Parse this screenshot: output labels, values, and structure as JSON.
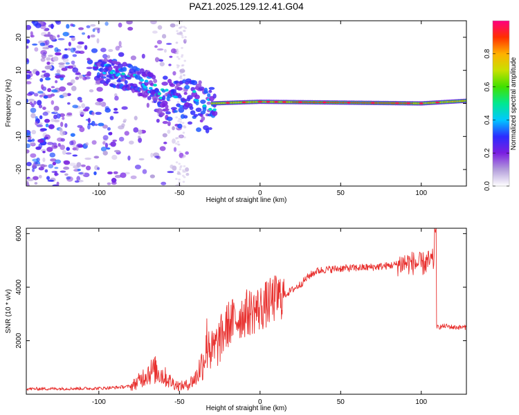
{
  "title": "PAZ1.2025.129.12.41.G04",
  "chart_data": [
    {
      "type": "heatmap",
      "xlabel": "Height of straight line (km)",
      "ylabel": "Frequency (Hz)",
      "xlim": [
        -145,
        128
      ],
      "ylim": [
        -25,
        25
      ],
      "xticks": [
        -100,
        -50,
        0,
        50,
        100
      ],
      "yticks": [
        -20,
        -10,
        0,
        10,
        20
      ],
      "grid": false,
      "colorbar": {
        "label": "Normalized spectral amplitude",
        "range": [
          0,
          1
        ],
        "ticks": [
          "0.0",
          "0.2",
          "0.4",
          "0.6",
          "0.8"
        ],
        "colors": [
          "#ffffff",
          "#b39ddb",
          "#7b1fe0",
          "#2b2bff",
          "#00c8ff",
          "#00e890",
          "#40e000",
          "#c8e000",
          "#ffb000",
          "#ff3000",
          "#ff0080"
        ]
      },
      "ridge": [
        {
          "x": -100,
          "f": 10
        },
        {
          "x": -80,
          "f": 8
        },
        {
          "x": -60,
          "f": 3
        },
        {
          "x": -40,
          "f": 2
        },
        {
          "x": -30,
          "f": 0
        },
        {
          "x": 0,
          "f": 0.5
        },
        {
          "x": 100,
          "f": 0
        },
        {
          "x": 128,
          "f": 0.8
        }
      ]
    },
    {
      "type": "line",
      "xlabel": "Height of straight line (km)",
      "ylabel": "SNR (10 * v/v)",
      "xlim": [
        -145,
        128
      ],
      "ylim": [
        0,
        6200
      ],
      "xticks": [
        -100,
        -50,
        0,
        50,
        100
      ],
      "yticks": [
        2000,
        4000,
        6000
      ],
      "color": "#e8302e",
      "series": [
        {
          "x": [
            -145,
            -100,
            -90,
            -80,
            -75,
            -70,
            -65,
            -60,
            -55,
            -50,
            -45,
            -40,
            -35,
            -32,
            -30,
            -25,
            -20,
            -15,
            -10,
            -5,
            0,
            5,
            10,
            15,
            20,
            25,
            30,
            35,
            40,
            50,
            60,
            70,
            80,
            85,
            90,
            95,
            100,
            105,
            108,
            109,
            110,
            115,
            120,
            128
          ],
          "y": [
            200,
            220,
            250,
            300,
            500,
            800,
            900,
            700,
            450,
            300,
            350,
            600,
            1300,
            2200,
            1500,
            2000,
            2600,
            2800,
            3000,
            3100,
            3200,
            3400,
            3600,
            3700,
            3900,
            4100,
            4400,
            4600,
            4650,
            4700,
            4720,
            4750,
            4800,
            4850,
            4900,
            4900,
            4850,
            4950,
            5000,
            2700,
            2500,
            2550,
            2500,
            2500
          ]
        }
      ]
    }
  ]
}
